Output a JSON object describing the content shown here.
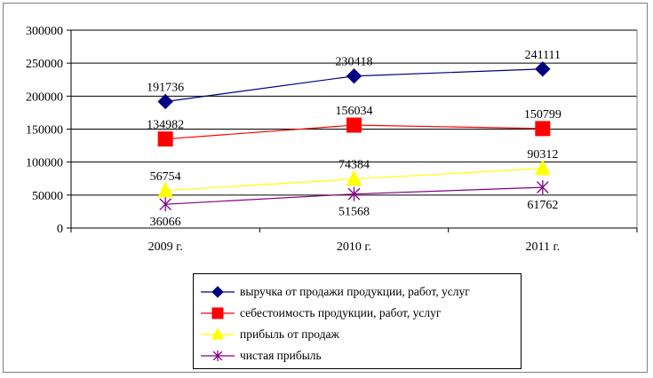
{
  "chart_data": {
    "type": "line",
    "categories": [
      "2009 г.",
      "2010 г.",
      "2011 г."
    ],
    "ylim": [
      0,
      300000
    ],
    "yticks": [
      0,
      50000,
      100000,
      150000,
      200000,
      250000,
      300000
    ],
    "ytick_labels": [
      "0",
      "50000",
      "100000",
      "150000",
      "200000",
      "250000",
      "300000"
    ],
    "grid": true,
    "legend_position": "bottom",
    "series": [
      {
        "name": "выручка от продажи продукции, работ, услуг",
        "values": [
          191736,
          230418,
          241111
        ],
        "labels": [
          "191736",
          "230418",
          "241111"
        ],
        "color": "#000080",
        "marker": "diamond",
        "label_pos": "above"
      },
      {
        "name": "себестоимость продукции, работ, услуг",
        "values": [
          134982,
          156034,
          150799
        ],
        "labels": [
          "134982",
          "156034",
          "150799"
        ],
        "color": "#ff0000",
        "marker": "square",
        "label_pos": "above"
      },
      {
        "name": "прибыль от продаж",
        "values": [
          56754,
          74384,
          90312
        ],
        "labels": [
          "56754",
          "74384",
          "90312"
        ],
        "color": "#ffff00",
        "marker": "triangle",
        "label_pos": "above"
      },
      {
        "name": "чистая прибыль",
        "values": [
          36066,
          51568,
          61762
        ],
        "labels": [
          "36066",
          "51568",
          "61762"
        ],
        "color": "#800080",
        "marker": "star",
        "label_pos": "below"
      }
    ]
  }
}
